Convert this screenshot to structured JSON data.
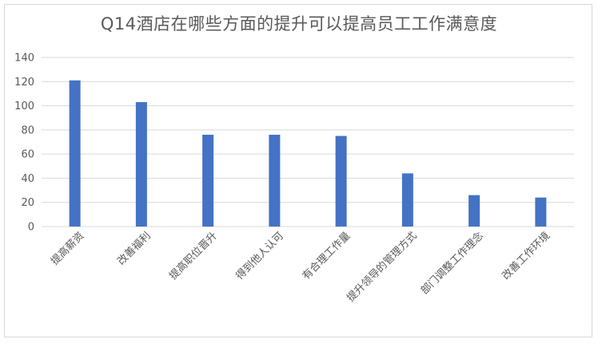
{
  "chart_data": {
    "type": "bar",
    "title": "Q14酒店在哪些方面的提升可以提高员工工作满意度",
    "categories": [
      "提高薪资",
      "改善福利",
      "提高职位晋升",
      "得到他人认可",
      "有合理工作量",
      "提升领导的管理方式",
      "部门调整工作理念",
      "改善工作环境"
    ],
    "series": [
      {
        "values": [
          121,
          103,
          76,
          76,
          75,
          44,
          26,
          24
        ]
      }
    ],
    "ylim": [
      0,
      140
    ],
    "yticks": [
      0,
      20,
      40,
      60,
      80,
      100,
      120,
      140
    ],
    "xlabel": "",
    "ylabel": "",
    "grid": true,
    "bar_color": "#4472C4",
    "grid_color": "#d9d9d9"
  }
}
